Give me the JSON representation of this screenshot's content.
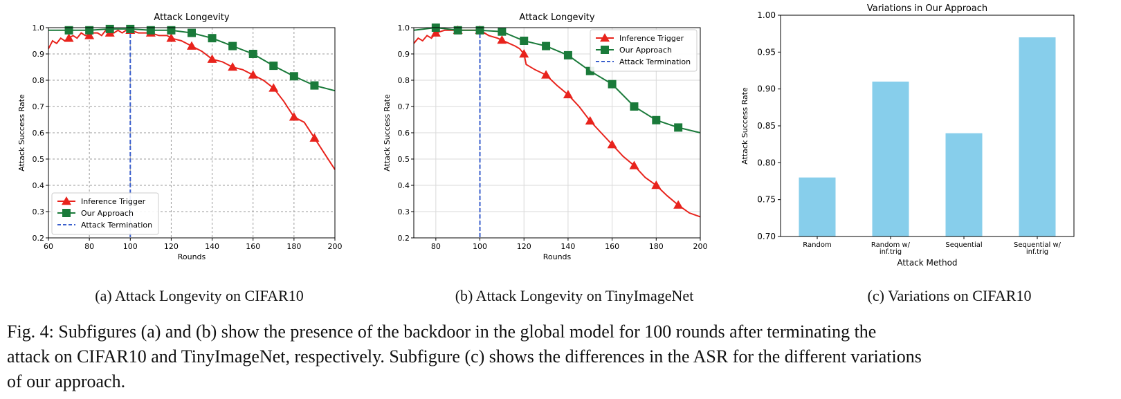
{
  "chart_data": [
    {
      "type": "line",
      "title": "Attack Longevity",
      "xlabel": "Rounds",
      "ylabel": "Attack Success Rate",
      "xlim": [
        60,
        200
      ],
      "ylim": [
        0.2,
        1.0
      ],
      "xticks": [
        60,
        80,
        100,
        120,
        140,
        160,
        180,
        200
      ],
      "yticks": [
        0.2,
        0.3,
        0.4,
        0.5,
        0.6,
        0.7,
        0.8,
        0.9,
        1.0
      ],
      "grid": "dashed",
      "legend_position": "lower-left",
      "termination_round": 100,
      "series": [
        {
          "name": "Inference Trigger",
          "color": "#e8231c",
          "marker": "triangle",
          "x": [
            60,
            62,
            64,
            66,
            68,
            70,
            72,
            74,
            76,
            78,
            80,
            82,
            84,
            86,
            88,
            90,
            92,
            94,
            96,
            98,
            100,
            104,
            108,
            110,
            114,
            118,
            120,
            125,
            130,
            135,
            140,
            145,
            150,
            155,
            160,
            165,
            170,
            175,
            180,
            185,
            190,
            195,
            200
          ],
          "y": [
            0.92,
            0.95,
            0.94,
            0.96,
            0.95,
            0.96,
            0.97,
            0.96,
            0.98,
            0.97,
            0.97,
            0.98,
            0.98,
            0.97,
            0.99,
            0.98,
            0.98,
            0.99,
            0.98,
            0.99,
            0.99,
            0.98,
            0.98,
            0.98,
            0.97,
            0.97,
            0.96,
            0.95,
            0.93,
            0.91,
            0.88,
            0.87,
            0.85,
            0.84,
            0.82,
            0.8,
            0.77,
            0.72,
            0.66,
            0.64,
            0.58,
            0.52,
            0.46
          ],
          "marker_x": [
            70,
            80,
            90,
            100,
            110,
            120,
            130,
            140,
            150,
            160,
            170,
            180,
            190
          ]
        },
        {
          "name": "Our Approach",
          "color": "#1a7a3a",
          "marker": "square",
          "x": [
            60,
            70,
            80,
            90,
            100,
            110,
            120,
            130,
            140,
            150,
            160,
            170,
            180,
            190,
            200
          ],
          "y": [
            0.99,
            0.99,
            0.99,
            0.995,
            0.995,
            0.99,
            0.99,
            0.98,
            0.96,
            0.93,
            0.9,
            0.855,
            0.815,
            0.78,
            0.76
          ],
          "marker_x": [
            70,
            80,
            90,
            100,
            110,
            120,
            130,
            140,
            150,
            160,
            170,
            180,
            190
          ]
        }
      ],
      "legend": [
        "Inference Trigger",
        "Our Approach",
        "Attack Termination"
      ]
    },
    {
      "type": "line",
      "title": "Attack Longevity",
      "xlabel": "Rounds",
      "ylabel": "Attack Success Rate",
      "xlim": [
        70,
        200
      ],
      "ylim": [
        0.2,
        1.0
      ],
      "xticks": [
        80,
        100,
        120,
        140,
        160,
        180,
        200
      ],
      "yticks": [
        0.2,
        0.3,
        0.4,
        0.5,
        0.6,
        0.7,
        0.8,
        0.9,
        1.0
      ],
      "grid": "solid",
      "legend_position": "upper-right",
      "termination_round": 100,
      "series": [
        {
          "name": "Inference Trigger",
          "color": "#e8231c",
          "marker": "triangle",
          "x": [
            70,
            72,
            74,
            76,
            78,
            80,
            84,
            88,
            92,
            96,
            100,
            104,
            108,
            112,
            116,
            118,
            120,
            121,
            125,
            130,
            135,
            140,
            145,
            150,
            155,
            160,
            165,
            170,
            175,
            180,
            185,
            190,
            195,
            200
          ],
          "y": [
            0.94,
            0.96,
            0.95,
            0.97,
            0.96,
            0.98,
            0.99,
            0.99,
            0.99,
            0.99,
            0.99,
            0.97,
            0.96,
            0.945,
            0.93,
            0.92,
            0.9,
            0.86,
            0.84,
            0.82,
            0.78,
            0.745,
            0.7,
            0.645,
            0.6,
            0.555,
            0.51,
            0.475,
            0.43,
            0.4,
            0.36,
            0.325,
            0.295,
            0.28
          ],
          "marker_x": [
            80,
            90,
            100,
            110,
            120,
            130,
            140,
            150,
            160,
            170,
            180,
            190
          ]
        },
        {
          "name": "Our Approach",
          "color": "#1a7a3a",
          "marker": "square",
          "x": [
            70,
            80,
            90,
            100,
            110,
            120,
            130,
            140,
            150,
            160,
            170,
            180,
            190,
            200
          ],
          "y": [
            0.99,
            1.0,
            0.99,
            0.99,
            0.985,
            0.95,
            0.93,
            0.895,
            0.835,
            0.785,
            0.7,
            0.648,
            0.62,
            0.6
          ],
          "marker_x": [
            80,
            90,
            100,
            110,
            120,
            130,
            140,
            150,
            160,
            170,
            180,
            190
          ]
        }
      ],
      "legend": [
        "Inference Trigger",
        "Our Approach",
        "Attack Termination"
      ]
    },
    {
      "type": "bar",
      "title": "Variations in Our Approach",
      "xlabel": "Attack Method",
      "ylabel": "Attack Success Rate",
      "ylim": [
        0.7,
        1.0
      ],
      "yticks": [
        0.7,
        0.75,
        0.8,
        0.85,
        0.9,
        0.95,
        1.0
      ],
      "categories": [
        [
          "Random"
        ],
        [
          "Random w/",
          "inf.trig"
        ],
        [
          "Sequential"
        ],
        [
          "Sequential w/",
          "inf.trig"
        ]
      ],
      "values": [
        0.78,
        0.91,
        0.84,
        0.97
      ],
      "bar_color": "#87ceeb",
      "grid": "off"
    }
  ],
  "captions": {
    "a": "(a) Attack Longevity on CIFAR10",
    "b": "(b) Attack Longevity on TinyImageNet",
    "c": "(c) Variations on CIFAR10",
    "figure_lines": [
      "Fig. 4: Subfigures (a) and (b) show the presence of the backdoor in the global model for 100 rounds after terminating the",
      "attack on CIFAR10 and TinyImageNet, respectively. Subfigure (c) shows the differences in the ASR for the different variations",
      "of our approach."
    ]
  }
}
